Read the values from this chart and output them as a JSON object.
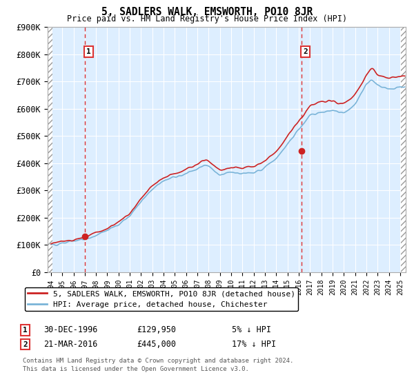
{
  "title": "5, SADLERS WALK, EMSWORTH, PO10 8JR",
  "subtitle": "Price paid vs. HM Land Registry's House Price Index (HPI)",
  "ylim": [
    0,
    900000
  ],
  "yticks": [
    0,
    100000,
    200000,
    300000,
    400000,
    500000,
    600000,
    700000,
    800000,
    900000
  ],
  "ytick_labels": [
    "£0",
    "£100K",
    "£200K",
    "£300K",
    "£400K",
    "£500K",
    "£600K",
    "£700K",
    "£800K",
    "£900K"
  ],
  "sale1_date": 1996.99,
  "sale1_price": 129950,
  "sale1_label": "1",
  "sale2_date": 2016.22,
  "sale2_price": 445000,
  "sale2_label": "2",
  "hpi_color": "#7ab4d8",
  "price_color": "#cc2222",
  "legend_label1": "5, SADLERS WALK, EMSWORTH, PO10 8JR (detached house)",
  "legend_label2": "HPI: Average price, detached house, Chichester",
  "footer1": "Contains HM Land Registry data © Crown copyright and database right 2024.",
  "footer2": "This data is licensed under the Open Government Licence v3.0.",
  "bg_color": "#ddeeff",
  "vline_color": "#dd3333",
  "sale1_text": "30-DEC-1996",
  "sale1_price_text": "£129,950",
  "sale1_hpi_text": "5% ↓ HPI",
  "sale2_text": "21-MAR-2016",
  "sale2_price_text": "£445,000",
  "sale2_hpi_text": "17% ↓ HPI"
}
